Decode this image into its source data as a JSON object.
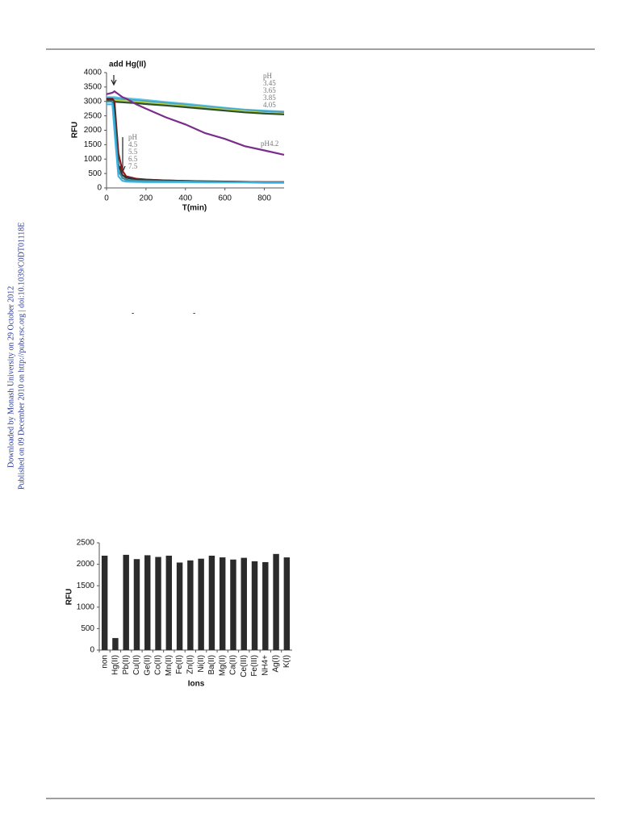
{
  "sidebar": [
    "Downloaded by Monash University on 29 October 2012",
    "Published on 09 December 2010 on http://pubs.rsc.org | doi:10.1039/C0DT01118E"
  ],
  "fragments": [
    "-",
    "-"
  ],
  "chart_data": [
    {
      "type": "line",
      "xlabel": "T(min)",
      "ylabel": "RFU",
      "annotations": [
        "add Hg(II)",
        "pH",
        "pH"
      ],
      "x": [
        0,
        30,
        40,
        60,
        80,
        100,
        150,
        200,
        300,
        400,
        500,
        600,
        700,
        800,
        900
      ],
      "xlim": [
        0,
        900
      ],
      "xticks": [
        0,
        200,
        400,
        600,
        800
      ],
      "ylim": [
        0,
        4000
      ],
      "yticks": [
        0,
        500,
        1000,
        1500,
        2000,
        2500,
        3000,
        3500,
        4000
      ],
      "series": [
        {
          "name": "3.45",
          "color": "#5cc9e6",
          "values": [
            3150,
            3150,
            3150,
            3130,
            3120,
            3110,
            3080,
            3050,
            2980,
            2920,
            2850,
            2780,
            2720,
            2680,
            2650
          ]
        },
        {
          "name": "3.65",
          "color": "#4aa3c4",
          "values": [
            3100,
            3100,
            3100,
            3090,
            3080,
            3070,
            3040,
            3010,
            2950,
            2890,
            2820,
            2760,
            2700,
            2660,
            2630
          ]
        },
        {
          "name": "3.85",
          "color": "#b5d145",
          "values": [
            3050,
            3050,
            3040,
            3030,
            3020,
            3010,
            2990,
            2960,
            2900,
            2840,
            2780,
            2720,
            2660,
            2600,
            2560
          ]
        },
        {
          "name": "4.05",
          "color": "#2d4f2d",
          "values": [
            3000,
            3000,
            2990,
            2980,
            2970,
            2960,
            2940,
            2910,
            2860,
            2800,
            2740,
            2680,
            2620,
            2580,
            2550
          ]
        },
        {
          "name": "pH4.2",
          "color": "#7a2d8c",
          "values": [
            3250,
            3300,
            3350,
            3250,
            3150,
            3100,
            2900,
            2750,
            2450,
            2200,
            1900,
            1700,
            1450,
            1300,
            1150
          ]
        },
        {
          "name": "4.5",
          "color": "#8b1a1a",
          "values": [
            3100,
            3100,
            3000,
            1200,
            600,
            400,
            320,
            290,
            260,
            240,
            230,
            220,
            210,
            200,
            200
          ]
        },
        {
          "name": "5.5",
          "color": "#333333",
          "values": [
            3050,
            3050,
            2800,
            800,
            450,
            350,
            300,
            280,
            260,
            240,
            230,
            220,
            210,
            200,
            200
          ]
        },
        {
          "name": "6.5",
          "color": "#3c8c9c",
          "values": [
            3000,
            3000,
            2400,
            600,
            350,
            280,
            250,
            240,
            230,
            220,
            210,
            200,
            200,
            190,
            190
          ]
        },
        {
          "name": "7.5",
          "color": "#39b4e6",
          "values": [
            2900,
            2900,
            2000,
            400,
            250,
            220,
            210,
            200,
            200,
            200,
            190,
            190,
            190,
            180,
            180
          ]
        }
      ]
    },
    {
      "type": "bar",
      "xlabel": "Ions",
      "ylabel": "RFU",
      "color": "#2b2b2b",
      "categories": [
        "non",
        "Hg(II)",
        "Pb(II)",
        "Cu(II)",
        "Ge(II)",
        "Co(II)",
        "Mn(II)",
        "Fe(II)",
        "Zn(II)",
        "Ni(II)",
        "Ba(II)",
        "Mg(II)",
        "Ca(II)",
        "Ce(III)",
        "Fe(III)",
        "NH4+",
        "Ag(I)",
        "K(I)"
      ],
      "values": [
        2200,
        280,
        2220,
        2120,
        2210,
        2170,
        2200,
        2040,
        2090,
        2130,
        2200,
        2160,
        2110,
        2150,
        2070,
        2050,
        2240,
        2160
      ],
      "ylim": [
        0,
        2500
      ],
      "yticks": [
        0,
        500,
        1000,
        1500,
        2000,
        2500
      ]
    }
  ]
}
